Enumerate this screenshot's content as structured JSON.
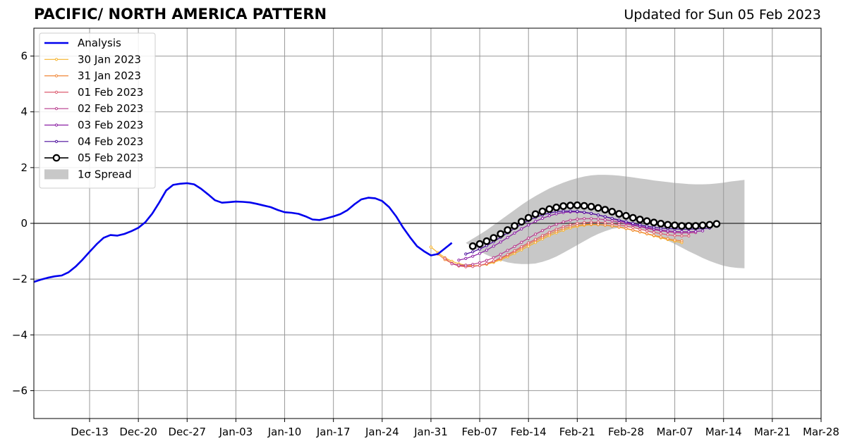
{
  "header": {
    "title": "PACIFIC/ NORTH AMERICA PATTERN",
    "updated": "Updated for Sun 05 Feb 2023"
  },
  "chart_data": {
    "type": "line",
    "title": "PACIFIC/ NORTH AMERICA PATTERN",
    "xlabel": "",
    "ylabel": "",
    "x_axis": {
      "type": "date",
      "range": [
        "2022-12-05",
        "2023-03-28"
      ],
      "tick_dates": [
        "2022-12-13",
        "2022-12-20",
        "2022-12-27",
        "2023-01-03",
        "2023-01-10",
        "2023-01-17",
        "2023-01-24",
        "2023-01-31",
        "2023-02-07",
        "2023-02-14",
        "2023-02-21",
        "2023-02-28",
        "2023-03-07",
        "2023-03-14",
        "2023-03-21",
        "2023-03-28"
      ],
      "tick_labels": [
        "Dec-13",
        "Dec-20",
        "Dec-27",
        "Jan-03",
        "Jan-10",
        "Jan-17",
        "Jan-24",
        "Jan-31",
        "Feb-07",
        "Feb-14",
        "Feb-21",
        "Feb-28",
        "Mar-07",
        "Mar-14",
        "Mar-21",
        "Mar-28"
      ]
    },
    "y_axis": {
      "range": [
        -7,
        7
      ],
      "ticks": [
        -6,
        -4,
        -2,
        0,
        2,
        4,
        6
      ],
      "tick_labels": [
        "−6",
        "−4",
        "−2",
        "0",
        "2",
        "4",
        "6"
      ]
    },
    "grid": true,
    "zero_line": true,
    "legend": {
      "placement": "upper-left",
      "entries": [
        "Analysis",
        "30 Jan 2023",
        "31 Jan 2023",
        "01 Feb 2023",
        "02 Feb 2023",
        "03 Feb 2023",
        "04 Feb 2023",
        "05 Feb 2023",
        "1σ Spread"
      ]
    },
    "analysis": {
      "name": "Analysis",
      "color": "#0000ee",
      "start_date": "2022-12-05",
      "values": [
        -2.1,
        -2.02,
        -1.95,
        -1.9,
        -1.87,
        -1.75,
        -1.55,
        -1.3,
        -1.02,
        -0.75,
        -0.52,
        -0.42,
        -0.44,
        -0.38,
        -0.28,
        -0.16,
        0.04,
        0.35,
        0.75,
        1.18,
        1.38,
        1.42,
        1.44,
        1.4,
        1.24,
        1.04,
        0.83,
        0.74,
        0.76,
        0.78,
        0.77,
        0.75,
        0.7,
        0.64,
        0.58,
        0.48,
        0.4,
        0.38,
        0.34,
        0.25,
        0.14,
        0.12,
        0.18,
        0.25,
        0.33,
        0.47,
        0.68,
        0.86,
        0.92,
        0.9,
        0.8,
        0.58,
        0.25,
        -0.15,
        -0.5,
        -0.82,
        -1.0,
        -1.15,
        -1.1,
        -0.9,
        -0.7
      ]
    },
    "forecasts": [
      {
        "name": "30 Jan 2023",
        "color": "#f5b32c",
        "start_date": "2023-01-31",
        "values": [
          -0.85,
          -1.05,
          -1.23,
          -1.36,
          -1.45,
          -1.5,
          -1.52,
          -1.51,
          -1.47,
          -1.4,
          -1.31,
          -1.2,
          -1.08,
          -0.95,
          -0.82,
          -0.69,
          -0.56,
          -0.44,
          -0.34,
          -0.25,
          -0.17,
          -0.11,
          -0.07,
          -0.05,
          -0.05,
          -0.07,
          -0.1,
          -0.14,
          -0.19,
          -0.25,
          -0.31,
          -0.38,
          -0.45,
          -0.52,
          -0.58,
          -0.64,
          -0.69
        ]
      },
      {
        "name": "31 Jan 2023",
        "color": "#f0883a",
        "start_date": "2023-02-01",
        "values": [
          -1.1,
          -1.3,
          -1.43,
          -1.5,
          -1.54,
          -1.54,
          -1.51,
          -1.45,
          -1.37,
          -1.27,
          -1.15,
          -1.02,
          -0.89,
          -0.75,
          -0.62,
          -0.5,
          -0.38,
          -0.28,
          -0.19,
          -0.12,
          -0.07,
          -0.04,
          -0.03,
          -0.04,
          -0.06,
          -0.09,
          -0.13,
          -0.18,
          -0.24,
          -0.3,
          -0.37,
          -0.43,
          -0.49,
          -0.55,
          -0.6,
          -0.63
        ]
      },
      {
        "name": "01 Feb 2023",
        "color": "#dc5a6e",
        "start_date": "2023-02-02",
        "values": [
          -1.25,
          -1.44,
          -1.53,
          -1.56,
          -1.55,
          -1.51,
          -1.44,
          -1.35,
          -1.24,
          -1.12,
          -0.98,
          -0.84,
          -0.7,
          -0.57,
          -0.44,
          -0.32,
          -0.21,
          -0.12,
          -0.05,
          0.0,
          0.03,
          0.04,
          0.04,
          0.02,
          -0.01,
          -0.05,
          -0.1,
          -0.15,
          -0.21,
          -0.27,
          -0.32,
          -0.37,
          -0.41,
          -0.44,
          -0.45,
          -0.45
        ]
      },
      {
        "name": "02 Feb 2023",
        "color": "#b83a8c",
        "start_date": "2023-02-03",
        "values": [
          -1.45,
          -1.5,
          -1.5,
          -1.47,
          -1.41,
          -1.33,
          -1.23,
          -1.11,
          -0.97,
          -0.83,
          -0.68,
          -0.53,
          -0.39,
          -0.26,
          -0.14,
          -0.04,
          0.05,
          0.11,
          0.15,
          0.17,
          0.17,
          0.16,
          0.13,
          0.09,
          0.04,
          -0.01,
          -0.07,
          -0.12,
          -0.18,
          -0.23,
          -0.27,
          -0.3,
          -0.33,
          -0.34,
          -0.34,
          -0.33
        ]
      },
      {
        "name": "03 Feb 2023",
        "color": "#8a1ea3",
        "start_date": "2023-02-04",
        "values": [
          -1.32,
          -1.26,
          -1.18,
          -1.08,
          -0.96,
          -0.82,
          -0.67,
          -0.51,
          -0.35,
          -0.2,
          -0.06,
          0.07,
          0.18,
          0.27,
          0.34,
          0.39,
          0.41,
          0.41,
          0.39,
          0.35,
          0.3,
          0.24,
          0.17,
          0.1,
          0.03,
          -0.04,
          -0.1,
          -0.15,
          -0.2,
          -0.24,
          -0.27,
          -0.29,
          -0.3,
          -0.3,
          -0.29,
          -0.27
        ]
      },
      {
        "name": "04 Feb 2023",
        "color": "#4a0c9c",
        "start_date": "2023-02-05",
        "values": [
          -1.1,
          -1.02,
          -0.92,
          -0.8,
          -0.66,
          -0.5,
          -0.34,
          -0.18,
          -0.03,
          0.1,
          0.21,
          0.3,
          0.37,
          0.42,
          0.44,
          0.44,
          0.43,
          0.4,
          0.36,
          0.3,
          0.24,
          0.18,
          0.12,
          0.06,
          0.0,
          -0.05,
          -0.1,
          -0.14,
          -0.17,
          -0.19,
          -0.2,
          -0.21,
          -0.21,
          -0.2,
          -0.19,
          -0.17
        ]
      },
      {
        "name": "05 Feb 2023",
        "color": "#000000",
        "start_date": "2023-02-06",
        "values": [
          -0.82,
          -0.74,
          -0.64,
          -0.52,
          -0.38,
          -0.24,
          -0.09,
          0.06,
          0.2,
          0.33,
          0.43,
          0.51,
          0.57,
          0.62,
          0.64,
          0.65,
          0.63,
          0.6,
          0.55,
          0.49,
          0.42,
          0.34,
          0.27,
          0.2,
          0.14,
          0.08,
          0.03,
          -0.01,
          -0.05,
          -0.07,
          -0.09,
          -0.09,
          -0.09,
          -0.07,
          -0.05,
          -0.02
        ]
      }
    ],
    "spread": {
      "name": "1σ Spread",
      "color": "#c8c8c8",
      "start_date": "2023-02-05",
      "upper": [
        -0.7,
        -0.55,
        -0.4,
        -0.24,
        -0.06,
        0.12,
        0.3,
        0.48,
        0.66,
        0.83,
        0.98,
        1.12,
        1.25,
        1.36,
        1.46,
        1.55,
        1.62,
        1.68,
        1.72,
        1.74,
        1.74,
        1.73,
        1.71,
        1.68,
        1.65,
        1.61,
        1.58,
        1.54,
        1.51,
        1.48,
        1.45,
        1.43,
        1.41,
        1.4,
        1.4,
        1.41,
        1.43,
        1.46,
        1.5,
        1.53,
        1.56
      ],
      "lower": [
        -0.7,
        -0.85,
        -1.0,
        -1.13,
        -1.24,
        -1.33,
        -1.4,
        -1.44,
        -1.46,
        -1.46,
        -1.44,
        -1.38,
        -1.3,
        -1.19,
        -1.06,
        -0.92,
        -0.78,
        -0.64,
        -0.5,
        -0.38,
        -0.28,
        -0.2,
        -0.16,
        -0.14,
        -0.16,
        -0.21,
        -0.29,
        -0.39,
        -0.5,
        -0.62,
        -0.74,
        -0.87,
        -1.0,
        -1.12,
        -1.24,
        -1.35,
        -1.44,
        -1.52,
        -1.57,
        -1.6,
        -1.61
      ]
    }
  }
}
